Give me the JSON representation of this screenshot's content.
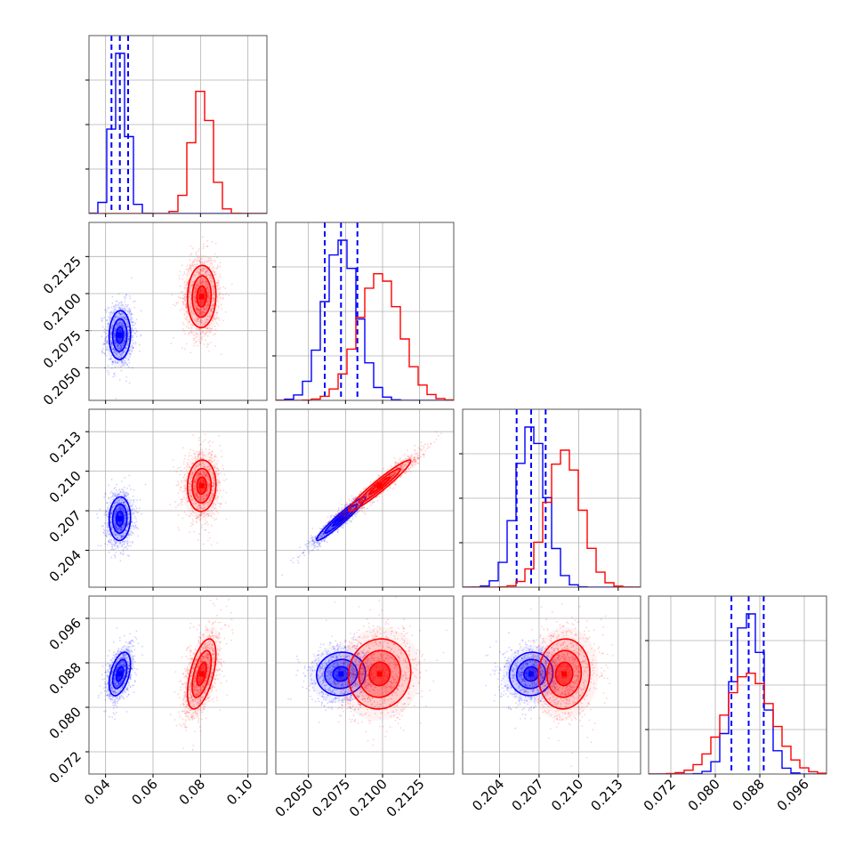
{
  "colors": {
    "blue": "#0000ff",
    "red": "#ff0000",
    "grid": "#b0b0b0",
    "frame": "#555555"
  },
  "chart_data": {
    "type": "corner",
    "title": "",
    "parameters": [
      "",
      "",
      "",
      ""
    ],
    "ranges": [
      [
        0.033,
        0.108
      ],
      [
        0.2028,
        0.2148
      ],
      [
        0.2012,
        0.2147
      ],
      [
        0.068,
        0.1
      ]
    ],
    "ticks": [
      [
        "0.04",
        "0.06",
        "0.08",
        "0.10"
      ],
      [
        "0.2050",
        "0.2075",
        "0.2100",
        "0.2125"
      ],
      [
        "0.204",
        "0.207",
        "0.210",
        "0.213"
      ],
      [
        "0.072",
        "0.080",
        "0.088",
        "0.096"
      ]
    ],
    "grid": true,
    "series": [
      {
        "color": "blue",
        "mean": [
          0.046,
          0.2072,
          0.2064,
          0.086
        ],
        "std": [
          0.003,
          0.0011,
          0.0011,
          0.0026
        ],
        "quantiles": [
          [
            0.0425,
            0.046,
            0.0495
          ],
          [
            0.2061,
            0.2072,
            0.2083
          ],
          [
            0.2053,
            0.2064,
            0.2075
          ],
          [
            0.0829,
            0.086,
            0.0887
          ]
        ],
        "corr": [
          [
            1,
            0.05,
            0.05,
            0.45
          ],
          [
            0.05,
            1,
            0.96,
            0.05
          ],
          [
            0.05,
            0.96,
            1,
            0.05
          ],
          [
            0.45,
            0.05,
            0.05,
            1
          ]
        ]
      },
      {
        "color": "red",
        "mean": [
          0.0805,
          0.2098,
          0.2089,
          0.086
        ],
        "std": [
          0.004,
          0.0014,
          0.0013,
          0.0042
        ],
        "quantiles": [],
        "corr": [
          [
            1,
            0.05,
            0.05,
            0.55
          ],
          [
            0.05,
            1,
            0.96,
            0.05
          ],
          [
            0.05,
            0.96,
            1,
            0.05
          ],
          [
            0.55,
            0.05,
            0.05,
            1
          ]
        ]
      }
    ]
  }
}
